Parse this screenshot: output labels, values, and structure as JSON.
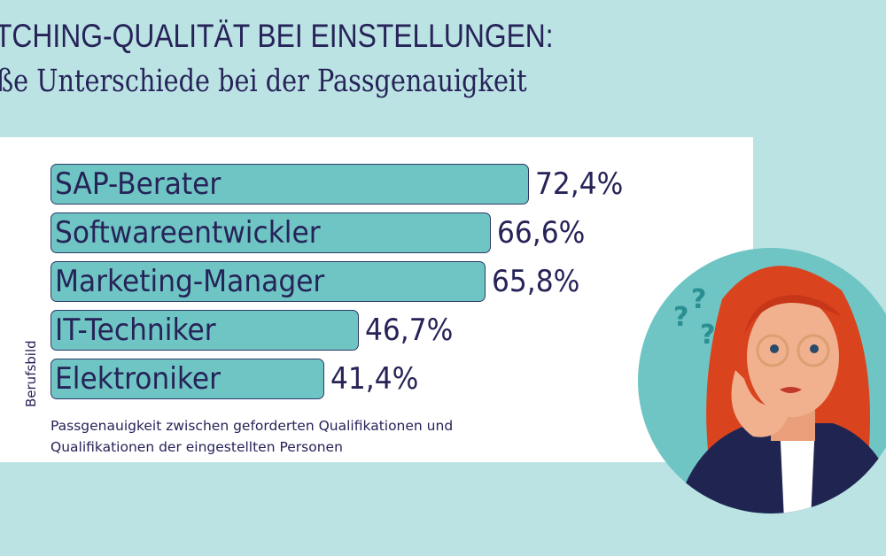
{
  "header": {
    "title": "TCHING-QUALITÄT BEI EINSTELLUNGEN:",
    "subtitle": "ße Unterschiede bei der Passgenauigkeit"
  },
  "chart_data": {
    "type": "bar",
    "orientation": "horizontal",
    "categories": [
      "SAP-Berater",
      "Softwareentwickler",
      "Marketing-Manager",
      "IT-Techniker",
      "Elektroniker"
    ],
    "values": [
      72.4,
      66.6,
      65.8,
      46.7,
      41.4
    ],
    "value_labels": [
      "72,4%",
      "66,6%",
      "65,8%",
      "46,7%",
      "41,4%"
    ],
    "ylabel": "Berufsbild",
    "xlabel": "Passgenauigkeit zwischen geforderten Qualifikationen und Qualifikationen der eingestellten Personen",
    "grid": false,
    "colors": {
      "bar": "#6fc5c4",
      "border": "#2d3a6a",
      "text": "#262358"
    }
  }
}
